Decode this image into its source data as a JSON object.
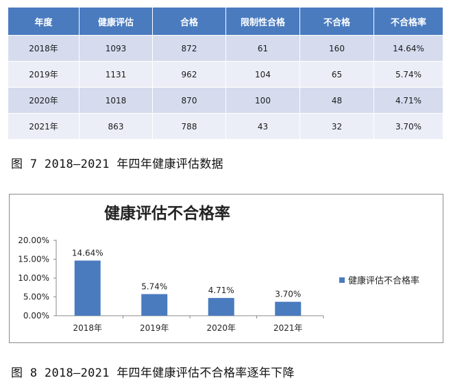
{
  "table": {
    "headers": [
      "年度",
      "健康评估",
      "合格",
      "限制性合格",
      "不合格",
      "不合格率"
    ],
    "rows": [
      [
        "2018年",
        "1093",
        "872",
        "61",
        "160",
        "14.64%"
      ],
      [
        "2019年",
        "1131",
        "962",
        "104",
        "65",
        "5.74%"
      ],
      [
        "2020年",
        "1018",
        "870",
        "100",
        "48",
        "4.71%"
      ],
      [
        "2021年",
        "863",
        "788",
        "43",
        "32",
        "3.70%"
      ]
    ]
  },
  "caption7": "图 7 2018—2021 年四年健康评估数据",
  "caption8": "图 8 2018—2021 年四年健康评估不合格率逐年下降",
  "colors": {
    "header": "#4a7bbf",
    "row_odd": "#d6dcee",
    "row_even": "#eceef7",
    "bar": "#4a7bbf"
  },
  "chart_data": {
    "type": "bar",
    "title": "健康评估不合格率",
    "categories": [
      "2018年",
      "2019年",
      "2020年",
      "2021年"
    ],
    "series": [
      {
        "name": "健康评估不合格率",
        "values": [
          14.64,
          5.74,
          4.71,
          3.7
        ]
      }
    ],
    "data_labels": [
      "14.64%",
      "5.74%",
      "4.71%",
      "3.70%"
    ],
    "y_ticks": [
      "0.00%",
      "5.00%",
      "10.00%",
      "15.00%",
      "20.00%"
    ],
    "ylim": [
      0,
      20
    ],
    "grid": false,
    "legend_position": "right"
  }
}
